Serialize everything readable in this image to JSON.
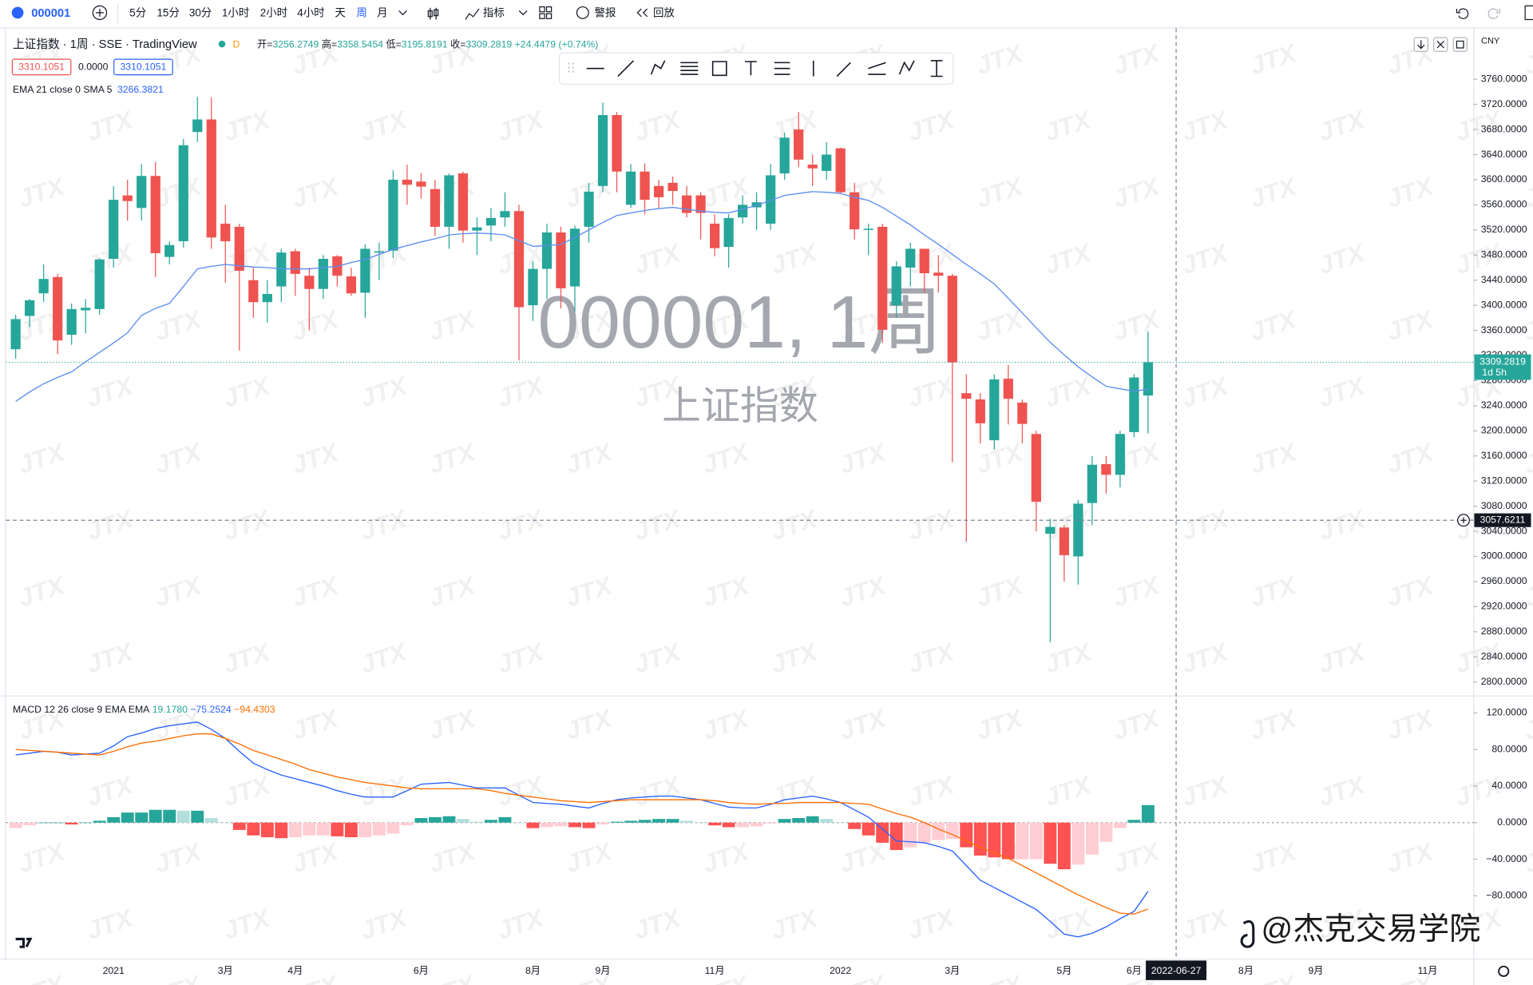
{
  "toolbar": {
    "symbol": "000001",
    "intervals": [
      "5分",
      "15分",
      "30分",
      "1小时",
      "2小时",
      "4小时",
      "天",
      "周",
      "月"
    ],
    "indicators": "指标",
    "alerts": "警报",
    "replay": "回放"
  },
  "watermark": {
    "symbol": "000001, 1周",
    "name": "上证指数",
    "brand": "JTX",
    "credit": "@杰克交易学院"
  },
  "chart_data": [
    {
      "type": "candlestick",
      "title": "上证指数 · 1周 · SSE · TradingView",
      "interval_badge": "D",
      "header": {
        "open_label": "开=",
        "high_label": "高=",
        "low_label": "低=",
        "close_label": "收=",
        "change": "+24.4479 (+0.74%)"
      },
      "quote": {
        "bid": "3310.1051",
        "spread": "0.0000",
        "ask": "3310.1051"
      },
      "currency": "CNY",
      "up_color": "#26a69a",
      "down_color": "#ef5350",
      "grid": false,
      "categories": [
        null,
        null,
        null,
        null,
        null,
        null,
        null,
        "2021",
        null,
        null,
        null,
        null,
        null,
        null,
        null,
        "3月",
        null,
        null,
        null,
        null,
        "4月",
        null,
        null,
        null,
        null,
        null,
        null,
        null,
        null,
        "6月",
        null,
        null,
        null,
        null,
        null,
        null,
        null,
        "8月",
        null,
        null,
        null,
        null,
        "9月",
        null,
        null,
        null,
        null,
        null,
        null,
        null,
        "11月",
        null,
        null,
        null,
        null,
        null,
        null,
        null,
        null,
        "2022",
        null,
        null,
        null,
        null,
        null,
        null,
        null,
        "3月",
        null,
        null,
        null,
        null,
        null,
        null,
        null,
        "5月",
        null,
        null,
        null,
        null,
        "6月",
        null,
        null,
        null,
        null,
        null,
        null,
        null,
        "8月",
        null,
        null,
        null,
        null,
        "9月",
        null,
        null,
        null,
        null,
        null,
        null,
        null,
        "11月",
        null,
        null,
        null
      ],
      "open": [
        3330,
        3383,
        3419,
        3445,
        3353,
        3392,
        3394,
        3474,
        3575,
        3555,
        3606,
        3477,
        3502,
        3676,
        3696,
        3530,
        3525,
        3440,
        3405,
        3430,
        3486,
        3447,
        3426,
        3478,
        3446,
        3420,
        3484,
        3487,
        3600,
        3597,
        3585,
        3525,
        3610,
        3519,
        3527,
        3540,
        3550,
        3400,
        3458,
        3516,
        3430,
        3525,
        3590,
        3703,
        3560,
        3613,
        3590,
        3595,
        3575,
        3575,
        3530,
        3493,
        3540,
        3556,
        3530,
        3610,
        3680,
        3624,
        3614,
        3650,
        3580,
        3520,
        3525,
        3400,
        3460,
        3490,
        3452,
        3447,
        3260,
        3250,
        3185,
        3283,
        3245,
        3195,
        3036,
        3046,
        3000,
        3085,
        3147,
        3130,
        3198,
        3256.2749,
        null,
        null,
        null,
        null,
        null,
        null,
        null,
        null,
        null,
        null,
        null,
        null,
        null,
        null,
        null,
        null,
        null,
        null,
        null,
        null,
        null,
        null,
        null
      ],
      "high": [
        3385,
        3410,
        3465,
        3450,
        3403,
        3410,
        3475,
        3590,
        3600,
        3625,
        3628,
        3502,
        3665,
        3732,
        3731,
        3560,
        3530,
        3460,
        3440,
        3490,
        3490,
        3460,
        3480,
        3480,
        3460,
        3497,
        3500,
        3615,
        3624,
        3610,
        3600,
        3610,
        3613,
        3540,
        3555,
        3580,
        3560,
        3470,
        3530,
        3525,
        3527,
        3595,
        3723,
        3708,
        3625,
        3626,
        3600,
        3605,
        3590,
        3580,
        3545,
        3545,
        3575,
        3580,
        3625,
        3675,
        3708,
        3640,
        3660,
        3651,
        3595,
        3530,
        3530,
        3470,
        3500,
        3490,
        3480,
        3450,
        3290,
        3260,
        3290,
        3305,
        3250,
        3200,
        3060,
        3050,
        3090,
        3160,
        3160,
        3200,
        3290,
        3358.5454,
        null,
        null,
        null,
        null,
        null,
        null,
        null,
        null,
        null,
        null,
        null,
        null,
        null,
        null,
        null,
        null,
        null,
        null,
        null,
        null,
        null,
        null,
        null
      ],
      "low": [
        3315,
        3365,
        3405,
        3322,
        3337,
        3355,
        3385,
        3460,
        3535,
        3535,
        3445,
        3465,
        3492,
        3660,
        3490,
        3436,
        3328,
        3380,
        3372,
        3405,
        3415,
        3360,
        3410,
        3430,
        3415,
        3380,
        3440,
        3475,
        3560,
        3570,
        3510,
        3490,
        3500,
        3480,
        3502,
        3525,
        3312,
        3375,
        3410,
        3395,
        3390,
        3500,
        3580,
        3580,
        3555,
        3545,
        3555,
        3560,
        3540,
        3505,
        3478,
        3460,
        3530,
        3520,
        3520,
        3600,
        3620,
        3590,
        3600,
        3578,
        3505,
        3480,
        3340,
        3380,
        3430,
        3420,
        3420,
        3150,
        3023,
        3180,
        3170,
        3210,
        3180,
        3040,
        2863,
        2960,
        2955,
        3050,
        3100,
        3110,
        3190,
        3195.8191,
        null,
        null,
        null,
        null,
        null,
        null,
        null,
        null,
        null,
        null,
        null,
        null,
        null,
        null,
        null,
        null,
        null,
        null,
        null,
        null,
        null,
        null,
        null
      ],
      "close": [
        3378,
        3408,
        3442,
        3344,
        3394,
        3396,
        3473,
        3568,
        3566,
        3606,
        3483,
        3496,
        3655,
        3696,
        3508,
        3502,
        3455,
        3405,
        3418,
        3484,
        3450,
        3426,
        3474,
        3447,
        3419,
        3490,
        3486,
        3600,
        3592,
        3589,
        3525,
        3607,
        3519,
        3524,
        3539,
        3550,
        3397,
        3458,
        3516,
        3427,
        3522,
        3581,
        3703,
        3613,
        3613,
        3568,
        3572,
        3582,
        3547,
        3547,
        3491,
        3539,
        3560,
        3564,
        3607,
        3667,
        3632,
        3618,
        3640,
        3580,
        3521,
        3522,
        3361,
        3462,
        3490,
        3451,
        3447,
        3309,
        3251,
        3212,
        3282,
        3251,
        3211,
        3087,
        3047,
        3002,
        3084,
        3146,
        3130,
        3195,
        3285,
        3309.2819,
        null,
        null,
        null,
        null,
        null,
        null,
        null,
        null,
        null,
        null,
        null,
        null,
        null,
        null,
        null,
        null,
        null,
        null,
        null,
        null,
        null,
        null,
        null
      ],
      "ema": {
        "name": "EMA 21 close 0 SMA 5",
        "color": "#5b8def",
        "values": [
          3247,
          3262,
          3275,
          3285,
          3294,
          3310,
          3325,
          3340,
          3356,
          3384,
          3395,
          3403,
          3430,
          3458,
          3462,
          3465,
          3463,
          3461,
          3460,
          3458,
          3458,
          3458,
          3460,
          3462,
          3468,
          3473,
          3481,
          3489,
          3495,
          3501,
          3506,
          3512,
          3514,
          3515,
          3514,
          3512,
          3503,
          3494,
          3495,
          3497,
          3508,
          3520,
          3532,
          3543,
          3547,
          3551,
          3554,
          3556,
          3553,
          3550,
          3548,
          3547,
          3553,
          3559,
          3567,
          3575,
          3578,
          3581,
          3580,
          3578,
          3572,
          3567,
          3556,
          3542,
          3528,
          3512,
          3497,
          3481,
          3465,
          3450,
          3434,
          3411,
          3388,
          3364,
          3341,
          3321,
          3302,
          3286,
          3271,
          3267,
          3263,
          3266.3821,
          null,
          null,
          null,
          null,
          null,
          null,
          null,
          null,
          null,
          null,
          null,
          null,
          null,
          null,
          null,
          null,
          null,
          null,
          null,
          null,
          null,
          null,
          null
        ]
      },
      "ylim": [
        2778.5,
        3839.5
      ],
      "yticks": [
        {
          "value": 2800,
          "label": "2800.0000"
        },
        {
          "value": 2840,
          "label": "2840.0000"
        },
        {
          "value": 2880,
          "label": "2880.0000"
        },
        {
          "value": 2920,
          "label": "2920.0000"
        },
        {
          "value": 2960,
          "label": "2960.0000"
        },
        {
          "value": 3000,
          "label": "3000.0000"
        },
        {
          "value": 3040,
          "label": "3040.0000"
        },
        {
          "value": 3080,
          "label": "3080.0000"
        },
        {
          "value": 3120,
          "label": "3120.0000"
        },
        {
          "value": 3160,
          "label": "3160.0000"
        },
        {
          "value": 3200,
          "label": "3200.0000"
        },
        {
          "value": 3240,
          "label": "3240.0000"
        },
        {
          "value": 3280,
          "label": "3280.0000"
        },
        {
          "value": 3320,
          "label": "3320.0000"
        },
        {
          "value": 3360,
          "label": "3360.0000"
        },
        {
          "value": 3400,
          "label": "3400.0000"
        },
        {
          "value": 3440,
          "label": "3440.0000"
        },
        {
          "value": 3480,
          "label": "3480.0000"
        },
        {
          "value": 3520,
          "label": "3520.0000"
        },
        {
          "value": 3560,
          "label": "3560.0000"
        },
        {
          "value": 3600,
          "label": "3600.0000"
        },
        {
          "value": 3640,
          "label": "3640.0000"
        },
        {
          "value": 3680,
          "label": "3680.0000"
        },
        {
          "value": 3720,
          "label": "3720.0000"
        },
        {
          "value": 3760,
          "label": "3760.0000"
        }
      ],
      "last_price": {
        "countdown": "1d 5h"
      },
      "crosshair": {
        "price": 3057.6211,
        "date": "2022-06-27"
      }
    },
    {
      "type": "macd",
      "title": "MACD 12 26 close 9 EMA EMA",
      "legend_values": [
        "19.1780",
        "−75.2524",
        "−94.4303"
      ],
      "legend_colors": [
        "#26a69a",
        "#2962ff",
        "#ff6d00"
      ],
      "macd": {
        "color": "#2962ff",
        "values": [
          74,
          76,
          78,
          77,
          74,
          75,
          76,
          84,
          94,
          98,
          103,
          106,
          108,
          110,
          102,
          92,
          78,
          65,
          58,
          52,
          48,
          44,
          40,
          35,
          31,
          28,
          28,
          28,
          35,
          42,
          43,
          44,
          41,
          38,
          38,
          38,
          30,
          22,
          21,
          20,
          18,
          16,
          21,
          25,
          27,
          28,
          29,
          29,
          27,
          25,
          21,
          17,
          16,
          16,
          20,
          25,
          27,
          29,
          26,
          22,
          14,
          6,
          -7,
          -20,
          -21,
          -22,
          -26,
          -31,
          -47,
          -63,
          -71,
          -79,
          -87,
          -95,
          -108,
          -122,
          -125,
          -121,
          -114,
          -105,
          -97,
          -75.2524,
          null,
          null,
          null,
          null,
          null,
          null,
          null,
          null,
          null,
          null,
          null,
          null,
          null,
          null,
          null,
          null,
          null,
          null,
          null,
          null,
          null,
          null,
          null
        ]
      },
      "signal": {
        "color": "#ff6d00",
        "values": [
          80,
          79,
          78,
          77,
          76,
          75,
          74,
          78,
          83,
          87,
          89,
          92,
          95,
          97,
          97,
          92,
          86,
          79,
          74,
          69,
          64,
          58,
          54,
          50,
          47,
          44,
          42,
          40,
          38,
          37,
          37,
          37,
          37,
          37,
          35,
          32,
          30,
          28,
          26,
          24,
          23,
          22,
          23,
          24,
          25,
          25,
          25,
          25,
          25,
          25,
          24,
          22,
          21,
          20,
          21,
          21,
          22,
          22,
          22,
          22,
          21,
          20,
          15,
          10,
          6,
          0,
          -7,
          -13,
          -20,
          -27,
          -33,
          -39,
          -47,
          -55,
          -63,
          -71,
          -79,
          -86,
          -93,
          -99,
          -100,
          -94.4303,
          null,
          null,
          null,
          null,
          null,
          null,
          null,
          null,
          null,
          null,
          null,
          null,
          null,
          null,
          null,
          null,
          null,
          null,
          null,
          null,
          null,
          null,
          null
        ]
      },
      "histogram": {
        "colors": {
          "up_rising": "#26a69a",
          "up_falling": "#b2dfdb",
          "down_falling": "#ff5252",
          "down_rising": "#ffcdd2"
        },
        "values": [
          -6,
          -3,
          0,
          0,
          -2,
          0,
          2,
          6,
          11,
          11,
          14,
          14,
          13,
          13,
          5,
          0,
          -8,
          -14,
          -16,
          -17,
          -16,
          -14,
          -14,
          -15,
          -16,
          -16,
          -14,
          -12,
          -3,
          5,
          6,
          7,
          4,
          1,
          3,
          6,
          0,
          -6,
          -5,
          -4,
          -5,
          -6,
          -2,
          1,
          2,
          3,
          4,
          4,
          2,
          0,
          -3,
          -5,
          -5,
          -4,
          -1,
          4,
          5,
          7,
          4,
          0,
          -7,
          -14,
          -22,
          -30,
          -27,
          -22,
          -19,
          -18,
          -27,
          -36,
          -38,
          -40,
          -40,
          -40,
          -45,
          -51,
          -46,
          -35,
          -21,
          -6,
          3,
          19.178,
          null,
          null,
          null,
          null,
          null,
          null,
          null,
          null,
          null,
          null,
          null,
          null,
          null,
          null,
          null,
          null,
          null,
          null,
          null,
          null,
          null,
          null,
          null
        ]
      },
      "ylim": [
        -148.7,
        138
      ],
      "yticks": [
        {
          "value": 120,
          "label": "120.0000"
        },
        {
          "value": 80,
          "label": "80.0000"
        },
        {
          "value": 40,
          "label": "40.0000"
        },
        {
          "value": 0,
          "label": "0.0000"
        },
        {
          "value": -40,
          "label": "−40.0000"
        },
        {
          "value": -80,
          "label": "−80.0000"
        }
      ]
    }
  ]
}
